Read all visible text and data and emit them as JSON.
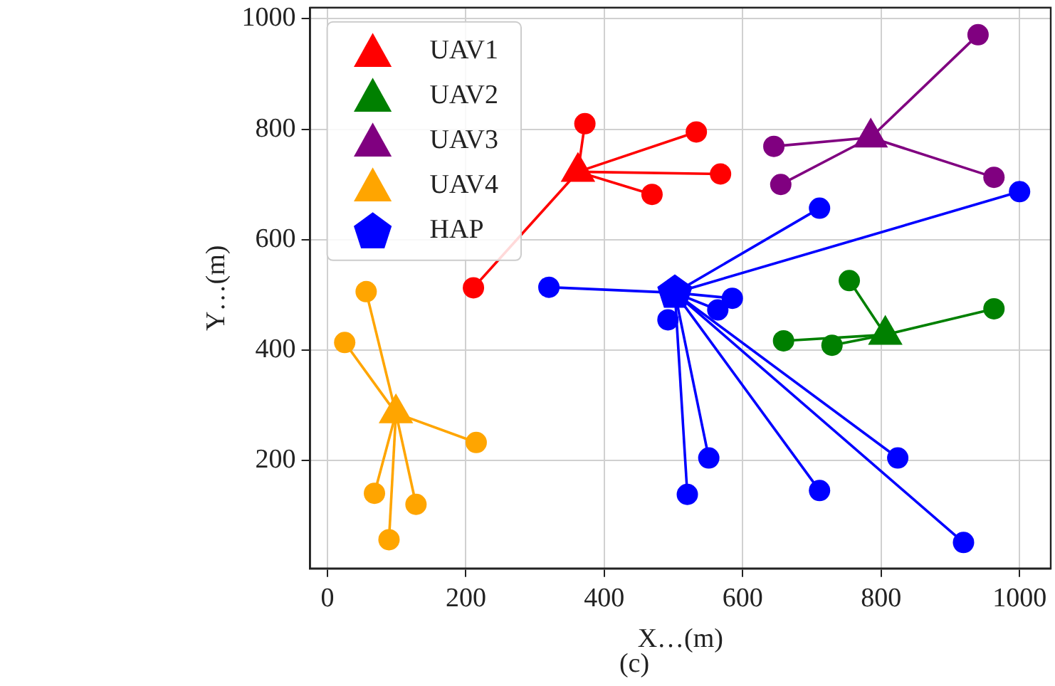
{
  "chart_data": [
    {
      "type": "scatter",
      "xlabel": "X…(m)",
      "ylabel": "Y…(m)",
      "annotations": [
        "(c)"
      ],
      "xlim": [
        -25,
        1045
      ],
      "ylim": [
        5,
        1020
      ],
      "xticks": [
        0,
        200,
        400,
        600,
        800,
        1000
      ],
      "yticks": [
        200,
        400,
        600,
        800,
        1000
      ],
      "grid": true,
      "legend": "top left",
      "series": [
        {
          "name": "UAV1",
          "color": "#ff0000",
          "marker": "triangle",
          "x": [
            362
          ],
          "values": [
            723
          ]
        },
        {
          "name": "UAV2",
          "color": "#008000",
          "marker": "triangle",
          "x": [
            806
          ],
          "values": [
            428
          ]
        },
        {
          "name": "UAV3",
          "color": "#800080",
          "marker": "triangle",
          "x": [
            785
          ],
          "values": [
            785
          ]
        },
        {
          "name": "UAV4",
          "color": "#ffa500",
          "marker": "triangle",
          "x": [
            99
          ],
          "values": [
            286
          ]
        },
        {
          "name": "HAP",
          "color": "#0000ff",
          "x": [
            502
          ],
          "values": [
            504
          ]
        },
        {
          "type": "scatter",
          "color": "#ff0000",
          "marker": "circle",
          "x": [
            372,
            533,
            568,
            469,
            211
          ],
          "values": [
            810,
            795,
            719,
            682,
            513
          ]
        },
        {
          "type": "scatter",
          "color": "#008000",
          "marker": "circle",
          "x": [
            754,
            963,
            659,
            729
          ],
          "values": [
            526,
            475,
            417,
            409
          ]
        },
        {
          "type": "scatter",
          "color": "#800080",
          "marker": "circle",
          "x": [
            940,
            645,
            655,
            963
          ],
          "values": [
            971,
            769,
            700,
            713
          ]
        },
        {
          "type": "scatter",
          "color": "#ffa500",
          "marker": "circle",
          "x": [
            56,
            25,
            215,
            68,
            128,
            89
          ],
          "values": [
            506,
            414,
            233,
            141,
            121,
            57
          ]
        },
        {
          "type": "scatter",
          "color": "#0000ff",
          "marker": "circle",
          "x": [
            320,
            711,
            1000,
            585,
            564,
            492,
            551,
            520,
            711,
            824,
            919
          ],
          "values": [
            514,
            657,
            687,
            494,
            473,
            455,
            205,
            139,
            146,
            205,
            52
          ]
        },
        {
          "type": "line",
          "color": "#ff0000",
          "marker": "none",
          "x": [
            362,
            372
          ],
          "values": [
            723,
            810
          ]
        },
        {
          "type": "line",
          "color": "#ff0000",
          "marker": "none",
          "x": [
            362,
            533
          ],
          "values": [
            723,
            795
          ]
        },
        {
          "type": "line",
          "color": "#ff0000",
          "marker": "none",
          "x": [
            362,
            568
          ],
          "values": [
            723,
            719
          ]
        },
        {
          "type": "line",
          "color": "#ff0000",
          "marker": "none",
          "x": [
            362,
            469
          ],
          "values": [
            723,
            682
          ]
        },
        {
          "type": "line",
          "color": "#ff0000",
          "marker": "none",
          "x": [
            362,
            211
          ],
          "values": [
            723,
            513
          ]
        },
        {
          "type": "line",
          "color": "#008000",
          "marker": "none",
          "x": [
            806,
            754
          ],
          "values": [
            428,
            526
          ]
        },
        {
          "type": "line",
          "color": "#008000",
          "marker": "none",
          "x": [
            806,
            963
          ],
          "values": [
            428,
            475
          ]
        },
        {
          "type": "line",
          "color": "#008000",
          "marker": "none",
          "x": [
            806,
            659
          ],
          "values": [
            428,
            417
          ]
        },
        {
          "type": "line",
          "color": "#008000",
          "marker": "none",
          "x": [
            806,
            729
          ],
          "values": [
            428,
            409
          ]
        },
        {
          "type": "line",
          "color": "#800080",
          "marker": "none",
          "x": [
            785,
            940
          ],
          "values": [
            785,
            971
          ]
        },
        {
          "type": "line",
          "color": "#800080",
          "marker": "none",
          "x": [
            785,
            645
          ],
          "values": [
            785,
            769
          ]
        },
        {
          "type": "line",
          "color": "#800080",
          "marker": "none",
          "x": [
            785,
            655
          ],
          "values": [
            785,
            700
          ]
        },
        {
          "type": "line",
          "color": "#800080",
          "marker": "none",
          "x": [
            785,
            963
          ],
          "values": [
            785,
            713
          ]
        },
        {
          "type": "line",
          "color": "#ffa500",
          "marker": "none",
          "x": [
            99,
            56
          ],
          "values": [
            286,
            506
          ]
        },
        {
          "type": "line",
          "color": "#ffa500",
          "marker": "none",
          "x": [
            99,
            25
          ],
          "values": [
            286,
            414
          ]
        },
        {
          "type": "line",
          "color": "#ffa500",
          "marker": "none",
          "x": [
            99,
            215
          ],
          "values": [
            286,
            233
          ]
        },
        {
          "type": "line",
          "color": "#ffa500",
          "marker": "none",
          "x": [
            99,
            68
          ],
          "values": [
            286,
            141
          ]
        },
        {
          "type": "line",
          "color": "#ffa500",
          "marker": "none",
          "x": [
            99,
            128
          ],
          "values": [
            286,
            121
          ]
        },
        {
          "type": "line",
          "color": "#ffa500",
          "marker": "none",
          "x": [
            99,
            89
          ],
          "values": [
            286,
            57
          ]
        },
        {
          "type": "line",
          "color": "#0000ff",
          "marker": "none",
          "x": [
            502,
            320
          ],
          "values": [
            504,
            514
          ]
        },
        {
          "type": "line",
          "color": "#0000ff",
          "marker": "none",
          "x": [
            502,
            711
          ],
          "values": [
            504,
            657
          ]
        },
        {
          "type": "line",
          "color": "#0000ff",
          "marker": "none",
          "x": [
            502,
            1000
          ],
          "values": [
            504,
            687
          ]
        },
        {
          "type": "line",
          "color": "#0000ff",
          "marker": "none",
          "x": [
            502,
            585
          ],
          "values": [
            504,
            494
          ]
        },
        {
          "type": "line",
          "color": "#0000ff",
          "marker": "none",
          "x": [
            502,
            564
          ],
          "values": [
            504,
            473
          ]
        },
        {
          "type": "line",
          "color": "#0000ff",
          "marker": "none",
          "x": [
            502,
            551
          ],
          "values": [
            504,
            205
          ]
        },
        {
          "type": "line",
          "color": "#0000ff",
          "marker": "none",
          "x": [
            502,
            520
          ],
          "values": [
            504,
            139
          ]
        },
        {
          "type": "line",
          "color": "#0000ff",
          "marker": "none",
          "x": [
            502,
            711
          ],
          "values": [
            504,
            146
          ]
        },
        {
          "type": "line",
          "color": "#0000ff",
          "marker": "none",
          "x": [
            502,
            824
          ],
          "values": [
            504,
            205
          ]
        },
        {
          "type": "line",
          "color": "#0000ff",
          "marker": "none",
          "x": [
            502,
            919
          ],
          "values": [
            504,
            52
          ]
        }
      ]
    }
  ]
}
